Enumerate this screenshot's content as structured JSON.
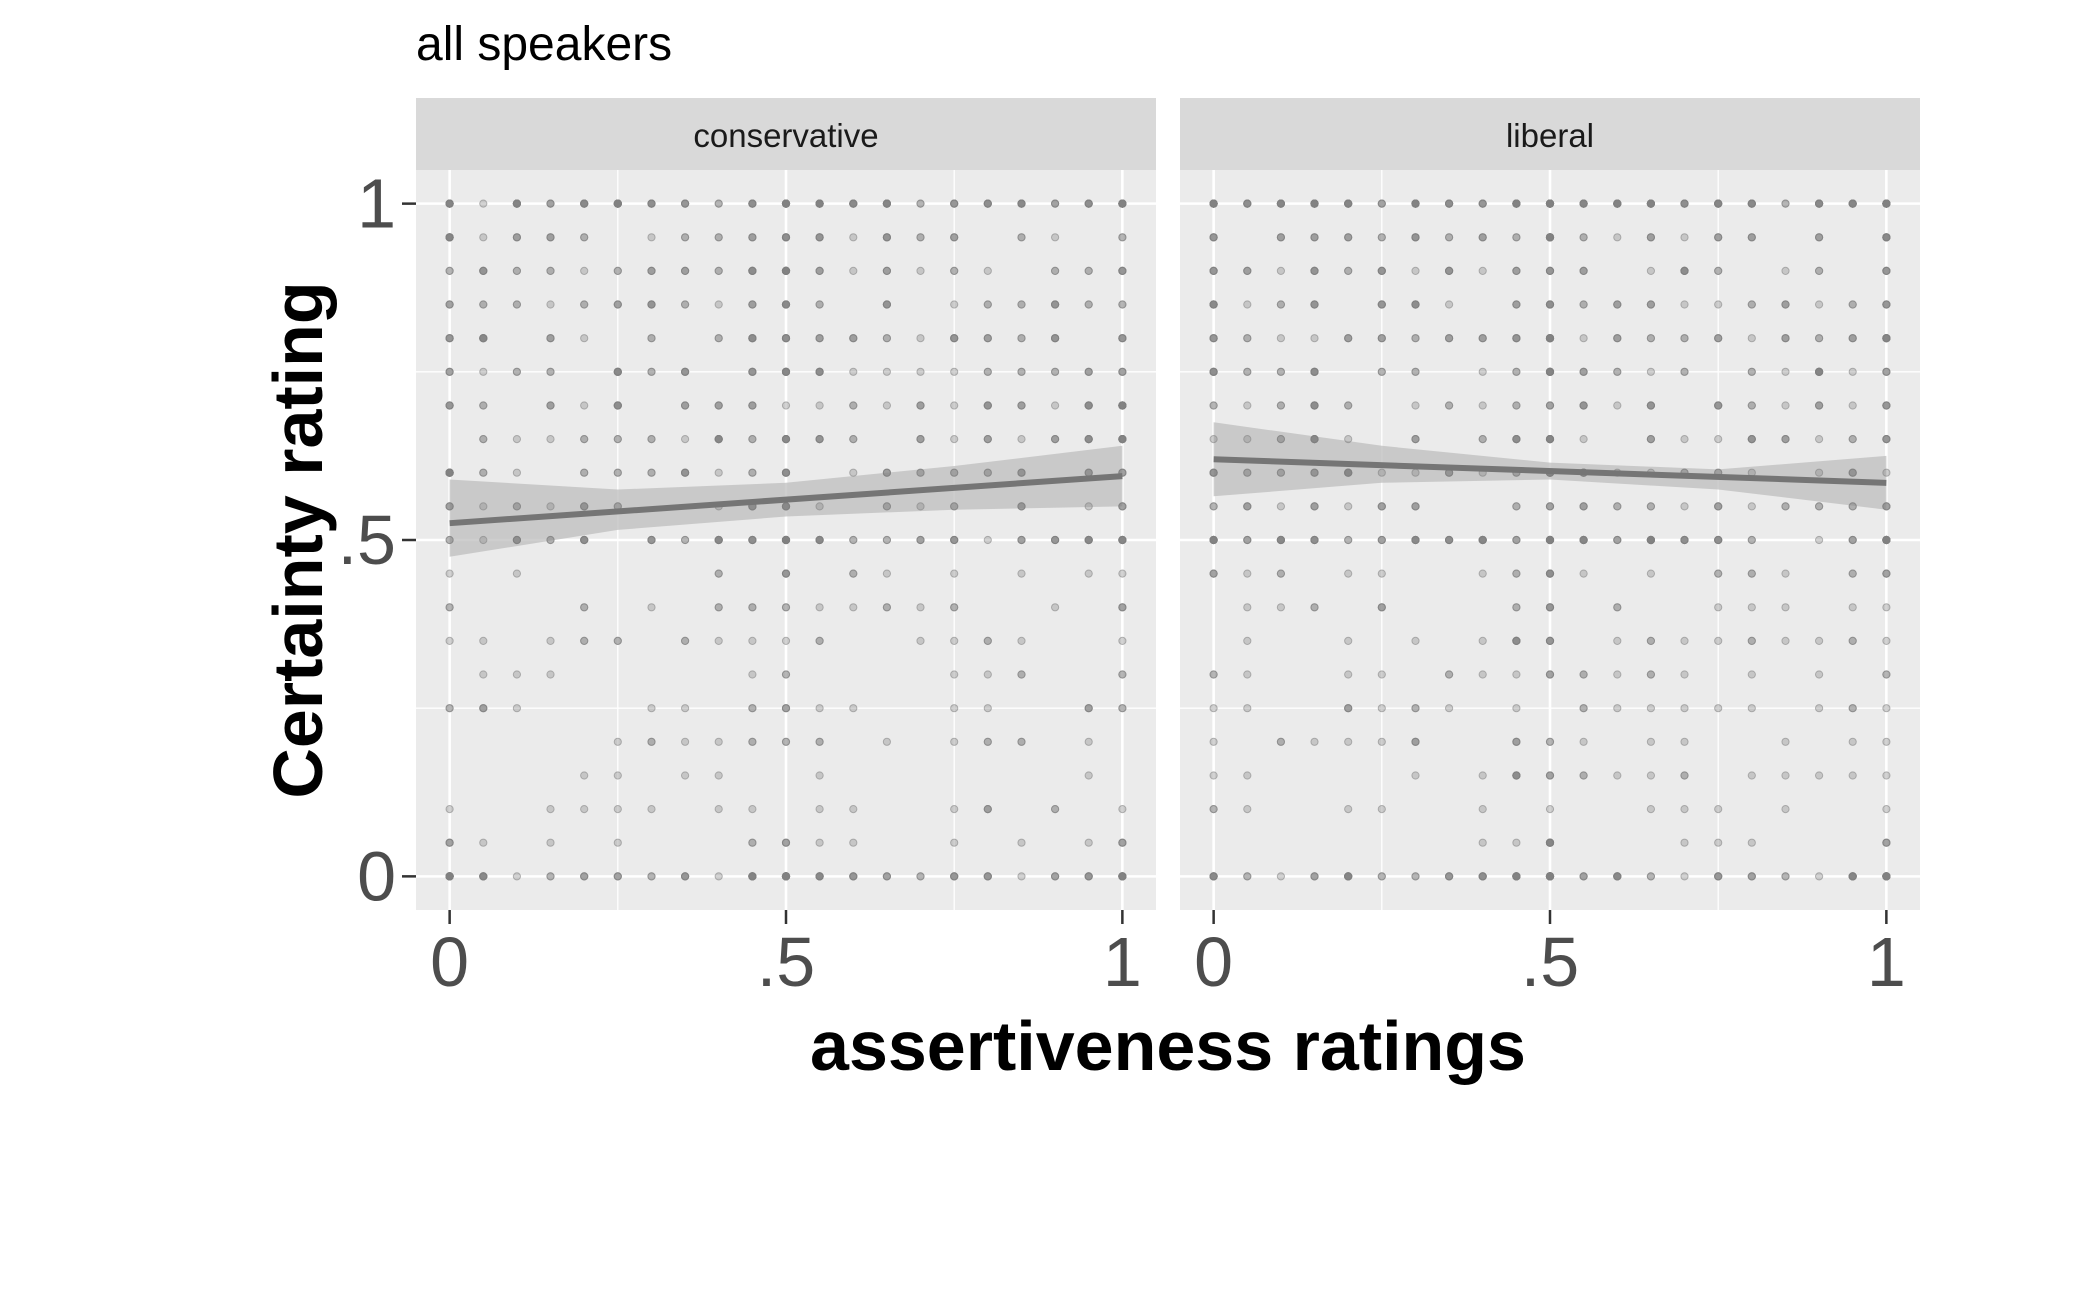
{
  "chart_data": {
    "type": "scatter",
    "title": "all speakers",
    "xlabel": "assertiveness ratings",
    "ylabel": "Certainty rating",
    "xlim": [
      -0.05,
      1.05
    ],
    "ylim": [
      -0.05,
      1.05
    ],
    "x_ticks": [
      0,
      0.5,
      1
    ],
    "x_tick_labels": [
      "0",
      ".5",
      "1"
    ],
    "y_ticks": [
      0,
      0.5,
      1
    ],
    "y_tick_labels": [
      "0",
      ".5",
      "1"
    ],
    "grid": true,
    "panel_background": "#ebebeb",
    "strip_background": "#d9d9d9",
    "point_color": "#808080",
    "line_color": "#757575",
    "band_color": "#bdbdbd",
    "facets": [
      {
        "label": "conservative",
        "seed": 11,
        "point_count": 900,
        "fit": {
          "x": [
            0,
            1
          ],
          "y": [
            0.525,
            0.595
          ]
        },
        "band": {
          "x": [
            0,
            0.25,
            0.5,
            0.75,
            1
          ],
          "lower": [
            0.475,
            0.515,
            0.535,
            0.545,
            0.55
          ],
          "upper": [
            0.59,
            0.575,
            0.585,
            0.61,
            0.64
          ]
        }
      },
      {
        "label": "liberal",
        "seed": 29,
        "point_count": 1000,
        "fit": {
          "x": [
            0,
            1
          ],
          "y": [
            0.62,
            0.585
          ]
        },
        "band": {
          "x": [
            0,
            0.25,
            0.5,
            0.75,
            1
          ],
          "lower": [
            0.565,
            0.585,
            0.59,
            0.575,
            0.545
          ],
          "upper": [
            0.675,
            0.64,
            0.615,
            0.605,
            0.625
          ]
        }
      }
    ]
  }
}
